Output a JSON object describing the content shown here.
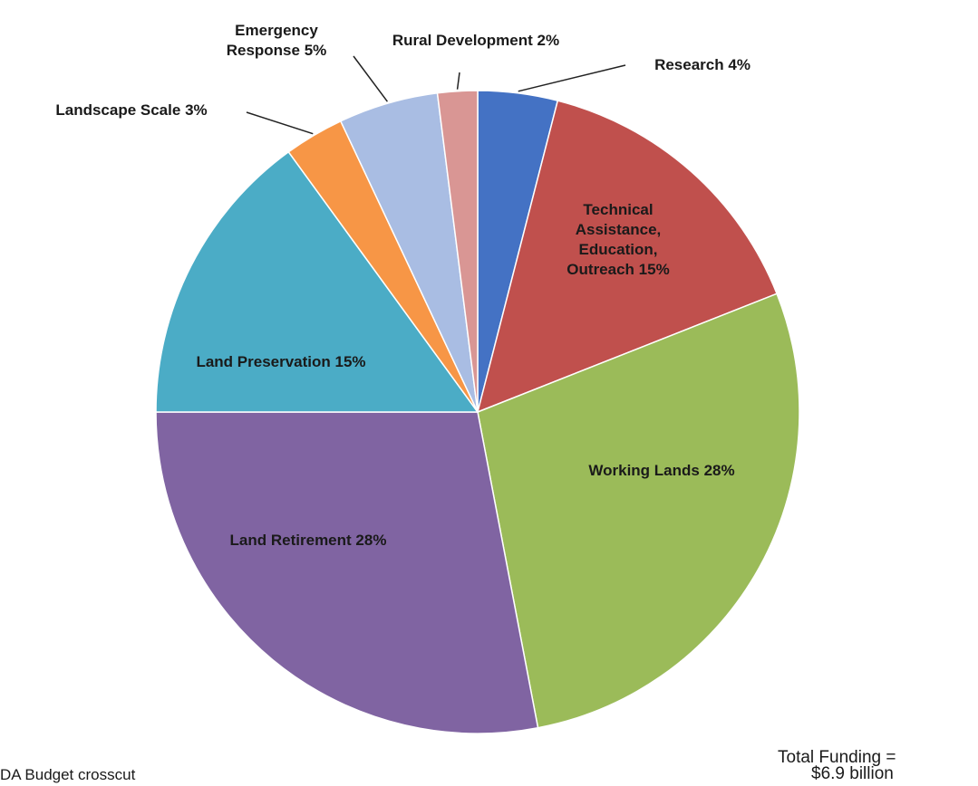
{
  "chart_data": {
    "type": "pie",
    "categories": [
      "Research",
      "Technical Assistance, Education, Outreach",
      "Working Lands",
      "Land Retirement",
      "Land Preservation",
      "Landscape Scale",
      "Emergency Response",
      "Rural Development"
    ],
    "values": [
      4,
      15,
      28,
      28,
      15,
      3,
      5,
      2
    ],
    "value_labels": [
      "4%",
      "15%",
      "28%",
      "28%",
      "15%",
      "3%",
      "5%",
      "2%"
    ],
    "colors": [
      "#4472c4",
      "#c0504d",
      "#9bbb59",
      "#8064a2",
      "#4bacc6",
      "#f79646",
      "#a9bde3",
      "#d99694"
    ],
    "annotations": [
      "Total Funding =",
      "$6.9 billion",
      "DA Budget crosscut"
    ]
  }
}
